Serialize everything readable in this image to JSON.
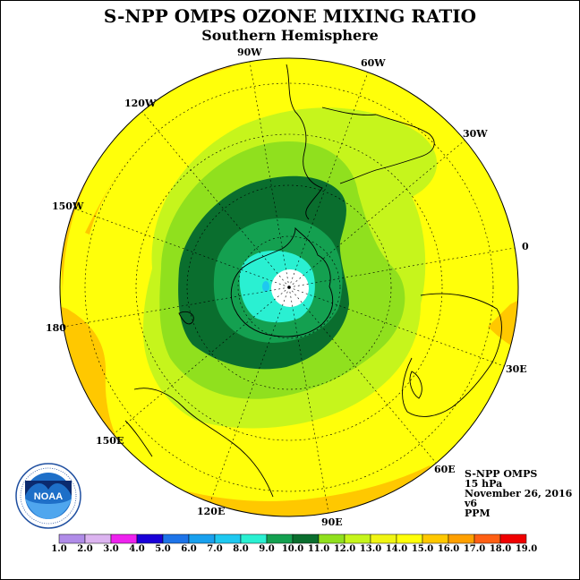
{
  "title": "S-NPP OMPS OZONE MIXING RATIO",
  "subtitle": "Southern Hemisphere",
  "lon_labels": [
    "90W",
    "60W",
    "30W",
    "0",
    "30E",
    "60E",
    "90E",
    "120E",
    "150E",
    "180",
    "150W",
    "120W"
  ],
  "info": {
    "line1": "S-NPP OMPS",
    "line2": "15 hPa",
    "line3": "November 26, 2016",
    "line4": "v6",
    "line5": "PPM"
  },
  "logo_text": "NOAA",
  "logo_ring_text": "NATIONAL OCEANIC AND ATMOSPHERIC ADMINISTRATION · U.S. DEPARTMENT OF COMMERCE",
  "colorbar": {
    "labels": [
      "1.0",
      "2.0",
      "3.0",
      "4.0",
      "5.0",
      "6.0",
      "7.0",
      "8.0",
      "9.0",
      "10.0",
      "11.0",
      "12.0",
      "13.0",
      "14.0",
      "15.0",
      "16.0",
      "17.0",
      "18.0",
      "19.0"
    ],
    "colors": [
      "#b08ce8",
      "#dcb4f0",
      "#ee22ee",
      "#1a00d8",
      "#1e74e8",
      "#19a0ee",
      "#1ec8f0",
      "#2af0d2",
      "#14a050",
      "#0a6e2e",
      "#90e01e",
      "#c6f51c",
      "#f0f514",
      "#ffff0a",
      "#ffc800",
      "#ffa000",
      "#ff5f14",
      "#f00000",
      "#8c5a3c"
    ]
  },
  "colors": {
    "background_fill": "#ffff0a",
    "ring_outer": "#ffc800",
    "ring_mid": "#f0f514",
    "zone_12": "#c6f51c",
    "zone_11": "#90e01e",
    "zone_10": "#0a6e2e",
    "zone_9": "#14a050",
    "zone_8": "#2af0d2",
    "zone_center": "#ffffff"
  }
}
